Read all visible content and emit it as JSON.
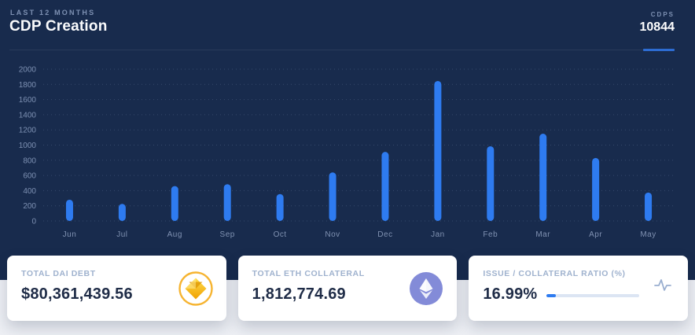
{
  "header": {
    "subtitle": "LAST 12 MONTHS",
    "title": "CDP Creation",
    "kpi_label": "CDPS",
    "kpi_value": "10844"
  },
  "chart_data": {
    "type": "bar",
    "title": "CDP Creation",
    "categories": [
      "Jun",
      "Jul",
      "Aug",
      "Sep",
      "Oct",
      "Nov",
      "Dec",
      "Jan",
      "Feb",
      "Mar",
      "Apr",
      "May"
    ],
    "values": [
      280,
      225,
      460,
      485,
      355,
      640,
      910,
      1845,
      985,
      1150,
      830,
      375
    ],
    "xlabel": "",
    "ylabel": "",
    "ylim": [
      0,
      2000
    ],
    "ytick_step": 200,
    "grid": true,
    "grid_style": "dotted",
    "legend": "none",
    "bar_color": "#2E7BF0"
  },
  "cards": [
    {
      "label": "TOTAL DAI DEBT",
      "value": "$80,361,439.56",
      "icon": "dai-icon"
    },
    {
      "label": "TOTAL ETH COLLATERAL",
      "value": "1,812,774.69",
      "icon": "eth-icon"
    },
    {
      "label": "ISSUE / COLLATERAL RATIO (%)",
      "value": "16.99%",
      "icon": "pulse-icon",
      "bar_percent": 10
    }
  ],
  "colors": {
    "panel_bg": "#182B4D",
    "page_bg": "#EDEFF4",
    "bar": "#2E7BF0",
    "axis_text": "#7D90B2",
    "card_label": "#9FB2CE",
    "card_value": "#1F2C47",
    "accent_underline": "#2D6CD2",
    "dai_gold": "#F6B431",
    "eth_purple": "#838BD8"
  }
}
